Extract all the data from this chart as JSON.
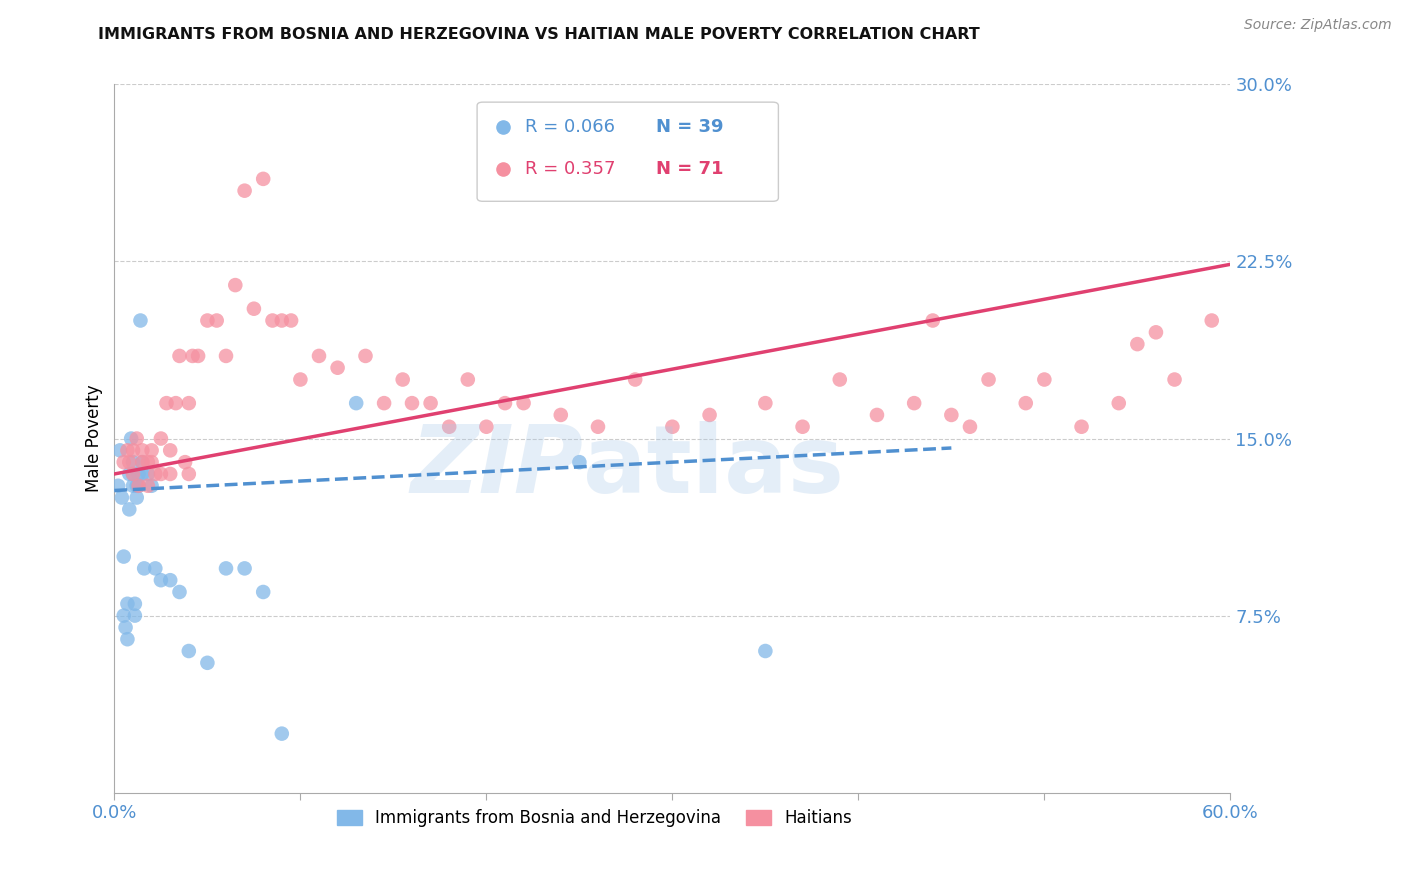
{
  "title": "IMMIGRANTS FROM BOSNIA AND HERZEGOVINA VS HAITIAN MALE POVERTY CORRELATION CHART",
  "source": "Source: ZipAtlas.com",
  "ylabel": "Male Poverty",
  "xlim": [
    0.0,
    0.6
  ],
  "ylim": [
    0.0,
    0.3
  ],
  "ytick_vals": [
    0.075,
    0.15,
    0.225,
    0.3
  ],
  "ytick_labels": [
    "7.5%",
    "15.0%",
    "22.5%",
    "30.0%"
  ],
  "xtick_vals": [
    0.0,
    0.1,
    0.2,
    0.3,
    0.4,
    0.5,
    0.6
  ],
  "xtick_labels": [
    "0.0%",
    "",
    "",
    "",
    "",
    "",
    "60.0%"
  ],
  "legend_r1": "R = 0.066",
  "legend_n1": "N = 39",
  "legend_r2": "R = 0.357",
  "legend_n2": "N = 71",
  "color_blue": "#82b8e8",
  "color_pink": "#f590a0",
  "color_trend_blue": "#5090d0",
  "color_trend_pink": "#e04070",
  "color_axis": "#5090d0",
  "background_color": "#ffffff",
  "bosnia_x": [
    0.002,
    0.003,
    0.004,
    0.005,
    0.005,
    0.006,
    0.007,
    0.007,
    0.008,
    0.008,
    0.009,
    0.01,
    0.01,
    0.01,
    0.011,
    0.011,
    0.012,
    0.012,
    0.013,
    0.013,
    0.014,
    0.015,
    0.015,
    0.016,
    0.018,
    0.02,
    0.022,
    0.025,
    0.03,
    0.035,
    0.04,
    0.05,
    0.06,
    0.07,
    0.08,
    0.09,
    0.13,
    0.25,
    0.35
  ],
  "bosnia_y": [
    0.13,
    0.145,
    0.125,
    0.1,
    0.075,
    0.07,
    0.08,
    0.065,
    0.12,
    0.135,
    0.15,
    0.13,
    0.135,
    0.14,
    0.075,
    0.08,
    0.125,
    0.13,
    0.13,
    0.135,
    0.2,
    0.135,
    0.14,
    0.095,
    0.135,
    0.13,
    0.095,
    0.09,
    0.09,
    0.085,
    0.06,
    0.055,
    0.095,
    0.095,
    0.085,
    0.025,
    0.165,
    0.14,
    0.06
  ],
  "haitian_x": [
    0.005,
    0.007,
    0.008,
    0.01,
    0.01,
    0.012,
    0.013,
    0.015,
    0.015,
    0.018,
    0.018,
    0.02,
    0.02,
    0.022,
    0.025,
    0.025,
    0.028,
    0.03,
    0.03,
    0.033,
    0.035,
    0.038,
    0.04,
    0.04,
    0.042,
    0.045,
    0.05,
    0.055,
    0.06,
    0.065,
    0.07,
    0.075,
    0.08,
    0.085,
    0.09,
    0.095,
    0.1,
    0.11,
    0.12,
    0.135,
    0.145,
    0.155,
    0.16,
    0.17,
    0.18,
    0.19,
    0.2,
    0.21,
    0.22,
    0.24,
    0.26,
    0.28,
    0.3,
    0.32,
    0.35,
    0.37,
    0.39,
    0.41,
    0.43,
    0.45,
    0.46,
    0.47,
    0.49,
    0.5,
    0.52,
    0.54,
    0.55,
    0.56,
    0.57,
    0.59,
    0.44
  ],
  "haitian_y": [
    0.14,
    0.145,
    0.14,
    0.145,
    0.135,
    0.15,
    0.13,
    0.14,
    0.145,
    0.14,
    0.13,
    0.14,
    0.145,
    0.135,
    0.15,
    0.135,
    0.165,
    0.145,
    0.135,
    0.165,
    0.185,
    0.14,
    0.165,
    0.135,
    0.185,
    0.185,
    0.2,
    0.2,
    0.185,
    0.215,
    0.255,
    0.205,
    0.26,
    0.2,
    0.2,
    0.2,
    0.175,
    0.185,
    0.18,
    0.185,
    0.165,
    0.175,
    0.165,
    0.165,
    0.155,
    0.175,
    0.155,
    0.165,
    0.165,
    0.16,
    0.155,
    0.175,
    0.155,
    0.16,
    0.165,
    0.155,
    0.175,
    0.16,
    0.165,
    0.16,
    0.155,
    0.175,
    0.165,
    0.175,
    0.155,
    0.165,
    0.19,
    0.195,
    0.175,
    0.2,
    0.2
  ]
}
